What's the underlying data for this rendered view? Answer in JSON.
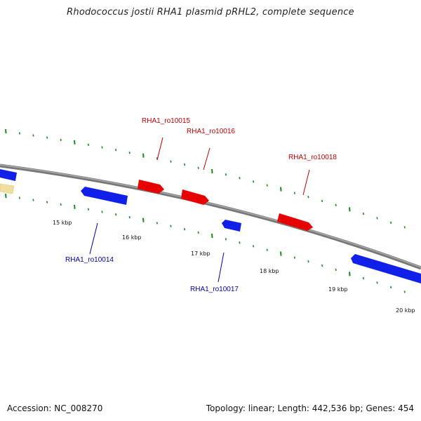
{
  "title": "Rhodococcus jostii RHA1 plasmid pRHL2, complete sequence",
  "footer": {
    "accession": "Accession: NC_008270",
    "info": "Topology: linear; Length: 442,536 bp; Genes: 454"
  },
  "colors": {
    "forward_gene": "#e00000",
    "reverse_gene": "#0010e0",
    "other_feature": "#f0e0a0",
    "tick": "#1a8a1a",
    "backbone": "#888888",
    "label_forward": "#c00000",
    "label_reverse": "#0000b0"
  },
  "scale_labels": [
    "15 kbp",
    "16 kbp",
    "17 kbp",
    "18 kbp",
    "19 kbp",
    "20 kbp"
  ],
  "genes": [
    {
      "id": "RHA1_ro10014",
      "strand": "reverse"
    },
    {
      "id": "RHA1_ro10015",
      "strand": "forward"
    },
    {
      "id": "RHA1_ro10016",
      "strand": "forward"
    },
    {
      "id": "RHA1_ro10017",
      "strand": "reverse"
    },
    {
      "id": "RHA1_ro10018",
      "strand": "forward"
    }
  ]
}
